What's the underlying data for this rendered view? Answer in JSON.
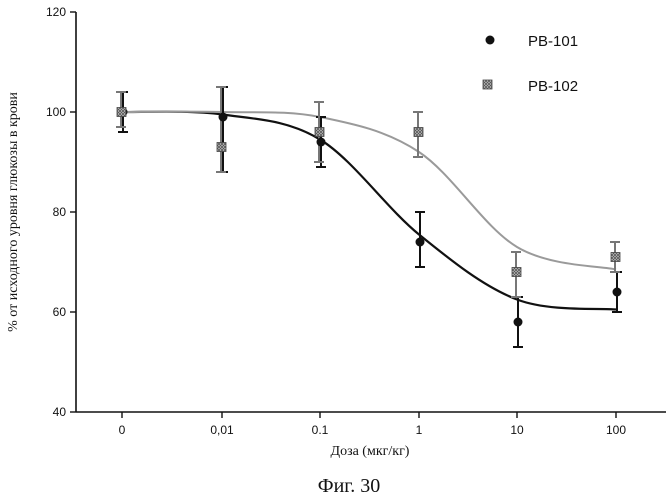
{
  "chart_data": {
    "type": "scatter",
    "xlabel": "Доза (мкг/кг)",
    "ylabel": "% от исходного уровня глюкозы в крови",
    "caption": "Фиг. 30",
    "categories": [
      "0",
      "0,01",
      "0.1",
      "1",
      "10",
      "100"
    ],
    "ylim": [
      40,
      120
    ],
    "yticks": [
      "40",
      "60",
      "80",
      "100",
      "120"
    ],
    "legend_position": "top-right",
    "series": [
      {
        "name": "PB-101",
        "marker": "filled-circle",
        "color": "#111111",
        "values": [
          100,
          99,
          94,
          74,
          58,
          64
        ],
        "err_low": [
          96,
          88,
          89,
          69,
          53,
          60
        ],
        "err_high": [
          104,
          105,
          99,
          80,
          63,
          68
        ],
        "fit_curve": [
          100,
          99.5,
          94.5,
          75.5,
          62.5,
          60.5
        ]
      },
      {
        "name": "PB-102",
        "marker": "hatched-square",
        "color": "#7a7a7a",
        "values": [
          100,
          93,
          96,
          96,
          68,
          71
        ],
        "err_low": [
          97,
          88,
          90,
          91,
          63,
          68
        ],
        "err_high": [
          104,
          105,
          102,
          100,
          72,
          74
        ],
        "fit_curve": [
          100,
          100,
          99,
          92,
          73,
          68.5
        ]
      }
    ]
  }
}
